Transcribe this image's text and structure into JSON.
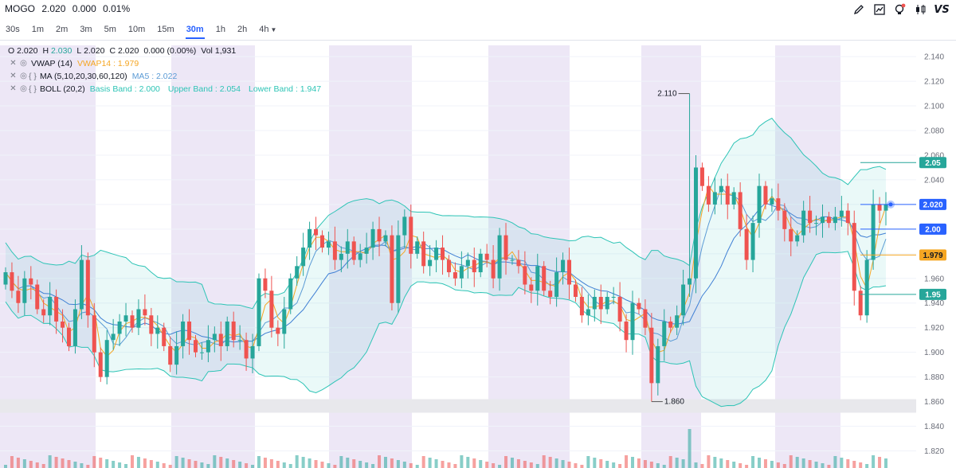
{
  "header": {
    "symbol": "MOGO",
    "price": "2.020",
    "change": "0.000",
    "change_pct": "0.01%"
  },
  "toolbar": {
    "icons": [
      "pencil-icon",
      "chart-icon",
      "bulb-icon",
      "candles-icon"
    ],
    "logo": "VS"
  },
  "intervals": [
    "30s",
    "1m",
    "2m",
    "3m",
    "5m",
    "10m",
    "15m",
    "30m",
    "1h",
    "2h",
    "4h"
  ],
  "active_interval": "30m",
  "legend": {
    "o_label": "O",
    "o": "2.020",
    "h_label": "H",
    "h": "2.030",
    "l_label": "L",
    "l": "2.020",
    "c_label": "C",
    "c": "2.020",
    "chg": "0.000 (0.00%)",
    "vol_label": "Vol",
    "vol": "1,931",
    "vwap_name": "VWAP (14)",
    "vwap_value": "VWAP14 : 1.979",
    "ma_name": "MA (5,10,20,30,60,120)",
    "ma_value": "MA5 : 2.022",
    "boll_name": "BOLL (20,2)",
    "boll_basis": "Basis Band : 2.000",
    "boll_upper": "Upper Band : 2.054",
    "boll_lower": "Lower Band : 1.947"
  },
  "colors": {
    "up": "#26a69a",
    "down": "#ef5350",
    "vwap": "#f5a623",
    "ma": "#5b9bd5",
    "boll": "#2ec4b6",
    "session": "#ede7f6",
    "active": "#2962ff"
  },
  "chart_data": {
    "type": "candlestick",
    "y_ticks": [
      "2.140",
      "2.120",
      "2.100",
      "2.080",
      "2.060",
      "2.040",
      "2.020",
      "2.000",
      "1.980",
      "1.960",
      "1.940",
      "1.920",
      "1.900",
      "1.880",
      "1.860",
      "1.840",
      "1.820"
    ],
    "ylim": [
      1.81,
      2.153
    ],
    "annotations": {
      "high_label": "2.110",
      "high": 2.11,
      "low_label": "1.860",
      "low": 1.86
    },
    "price_tags": [
      {
        "text": "2.05",
        "value": 2.054,
        "color": "#26a69a"
      },
      {
        "text": "2.020",
        "value": 2.02,
        "color": "#2962ff"
      },
      {
        "text": "2.00",
        "value": 2.0,
        "color": "#2962ff"
      },
      {
        "text": "1.979",
        "value": 1.979,
        "color": "#f5a623"
      },
      {
        "text": "1.95",
        "value": 1.947,
        "color": "#26a69a"
      }
    ],
    "closes": [
      1.965,
      1.95,
      1.94,
      1.96,
      1.955,
      1.935,
      1.93,
      1.945,
      1.925,
      1.92,
      1.905,
      1.935,
      1.975,
      1.93,
      1.9,
      1.88,
      1.91,
      1.915,
      1.925,
      1.93,
      1.92,
      1.935,
      1.93,
      1.915,
      1.92,
      1.905,
      1.89,
      1.905,
      1.925,
      1.91,
      1.9,
      1.9,
      1.91,
      1.915,
      1.905,
      1.925,
      1.91,
      1.91,
      1.895,
      1.905,
      1.96,
      1.95,
      1.92,
      1.915,
      1.935,
      1.96,
      1.97,
      1.985,
      2.0,
      1.995,
      1.985,
      1.99,
      1.975,
      1.98,
      1.99,
      1.975,
      1.98,
      1.985,
      2.0,
      1.99,
      1.995,
      1.94,
      1.995,
      2.01,
      1.98,
      1.99,
      1.97,
      1.975,
      1.985,
      1.975,
      1.965,
      1.96,
      1.97,
      1.975,
      1.965,
      1.98,
      1.975,
      1.96,
      1.995,
      1.975,
      1.975,
      1.97,
      1.955,
      1.95,
      1.97,
      1.95,
      1.945,
      1.965,
      1.975,
      1.955,
      1.945,
      1.93,
      1.935,
      1.945,
      1.935,
      1.945,
      1.945,
      1.925,
      1.91,
      1.94,
      1.935,
      1.92,
      1.875,
      1.905,
      1.925,
      1.92,
      1.93,
      1.955,
      1.96,
      2.05,
      2.035,
      2.02,
      2.03,
      2.035,
      2.02,
      2.03,
      2.0,
      1.975,
      2.005,
      2.035,
      2.02,
      2.025,
      2.015,
      2.0,
      1.99,
      1.995,
      2.015,
      2.005,
      2.005,
      2.01,
      2.005,
      2.01,
      2.015,
      2.005,
      1.95,
      1.93,
      1.975,
      2.02,
      2.015,
      2.02
    ]
  }
}
